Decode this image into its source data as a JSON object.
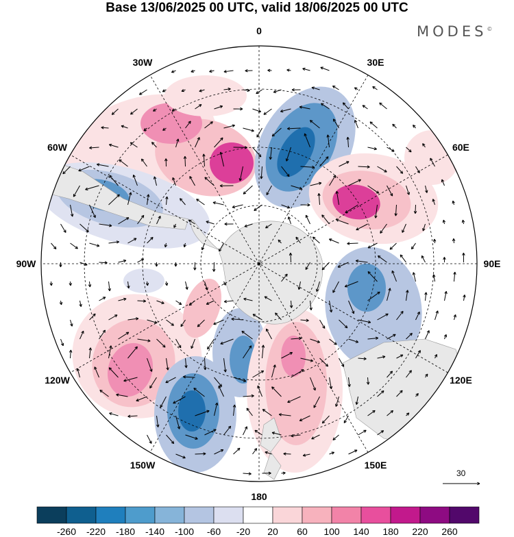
{
  "title": "Base 13/06/2025 00 UTC, valid 18/06/2025 00 UTC",
  "brand": "MODES",
  "brand_mark": "©",
  "projection": "south-polar-stereographic",
  "longitude_labels": [
    {
      "text": "0",
      "lon": 0
    },
    {
      "text": "30E",
      "lon": 30
    },
    {
      "text": "60E",
      "lon": 60
    },
    {
      "text": "90E",
      "lon": 90
    },
    {
      "text": "120E",
      "lon": 120
    },
    {
      "text": "150E",
      "lon": 150
    },
    {
      "text": "180",
      "lon": 180
    },
    {
      "text": "150W",
      "lon": -150
    },
    {
      "text": "120W",
      "lon": -120
    },
    {
      "text": "90W",
      "lon": -90
    },
    {
      "text": "60W",
      "lon": -60
    },
    {
      "text": "30W",
      "lon": -30
    }
  ],
  "reference_vector": {
    "label": "30",
    "value": 30
  },
  "colorbar": {
    "labels": [
      "-260",
      "-220",
      "-180",
      "-140",
      "-100",
      "-60",
      "-20",
      "20",
      "60",
      "100",
      "140",
      "180",
      "220",
      "260"
    ],
    "colors": [
      "#0b3e5c",
      "#0f5f8f",
      "#1f7fbd",
      "#4e9ccc",
      "#86b4d9",
      "#b4c5e2",
      "#dcdff0",
      "#ffffff",
      "#fad6d9",
      "#f7b2bd",
      "#f283a8",
      "#e84f9d",
      "#c2198c",
      "#8e0b82",
      "#52086b"
    ]
  },
  "anomaly_colors": {
    "neg_strong": "#1f6fae",
    "neg_mid": "#5d97c9",
    "neg_weak": "#b7c6e2",
    "neg_faint": "#dfe2f1",
    "pos_faint": "#fbe2e4",
    "pos_weak": "#f7c1c9",
    "pos_mid": "#f08fb4",
    "pos_strong": "#dc3f99"
  },
  "land_color": "#e8e8e8"
}
